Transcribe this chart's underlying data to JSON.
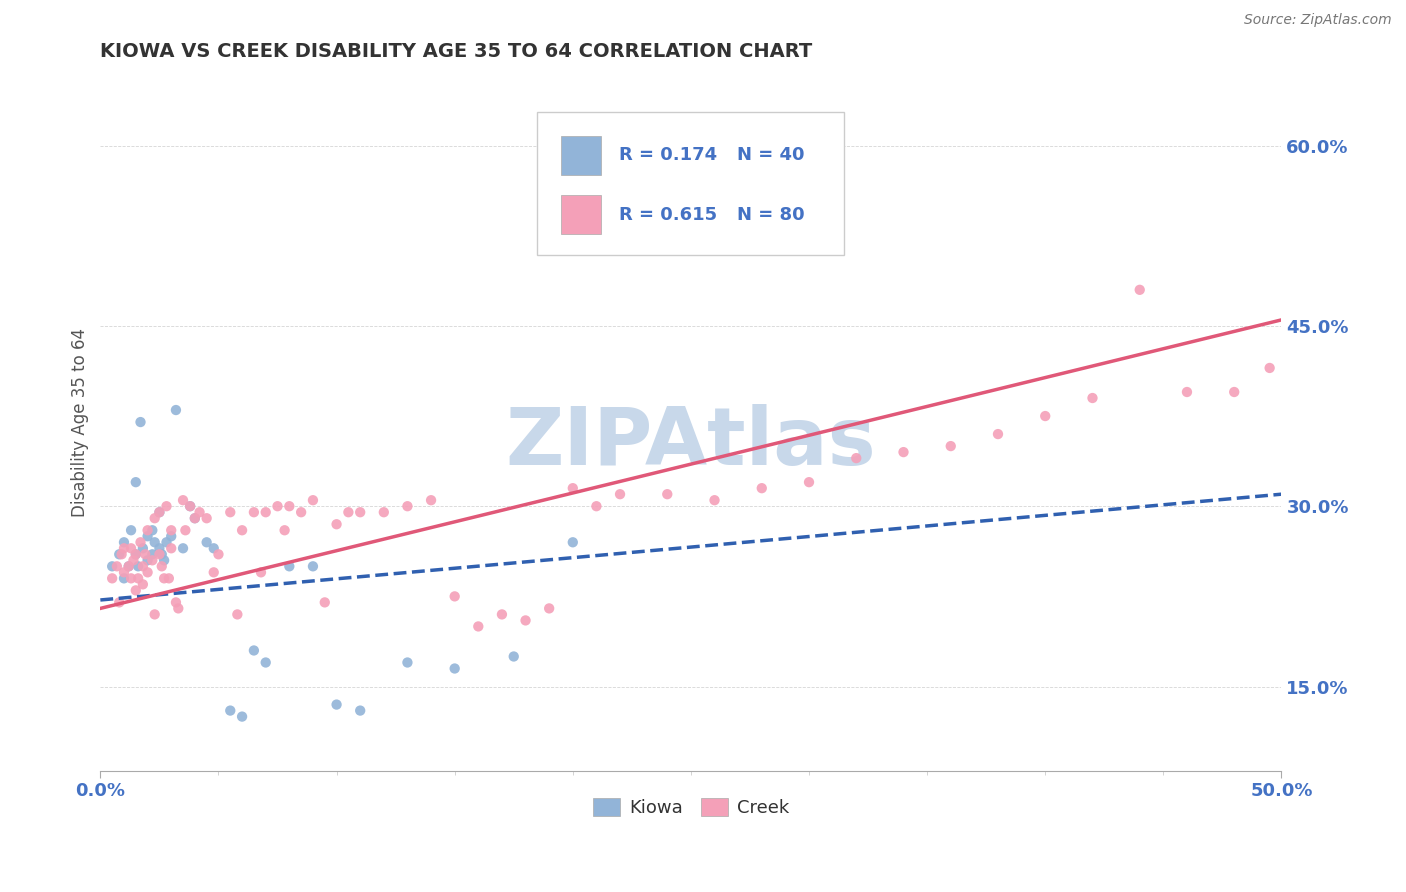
{
  "title": "KIOWA VS CREEK DISABILITY AGE 35 TO 64 CORRELATION CHART",
  "source_text": "Source: ZipAtlas.com",
  "ylabel": "Disability Age 35 to 64",
  "xlim": [
    0.0,
    0.5
  ],
  "ylim": [
    0.08,
    0.66
  ],
  "ytick_positions": [
    0.15,
    0.3,
    0.45,
    0.6
  ],
  "ytick_labels": [
    "15.0%",
    "30.0%",
    "45.0%",
    "60.0%"
  ],
  "kiowa_color": "#92b4d8",
  "creek_color": "#f4a0b8",
  "kiowa_line_color": "#3060b0",
  "creek_line_color": "#e05878",
  "legend_text_color": "#4472c4",
  "kiowa_R": 0.174,
  "kiowa_N": 40,
  "creek_R": 0.615,
  "creek_N": 80,
  "watermark": "ZIPAtlas",
  "watermark_color": "#c8d8ea",
  "kiowa_line_x0": 0.0,
  "kiowa_line_y0": 0.222,
  "kiowa_line_x1": 0.5,
  "kiowa_line_y1": 0.31,
  "creek_line_x0": 0.0,
  "creek_line_y0": 0.215,
  "creek_line_x1": 0.5,
  "creek_line_y1": 0.455,
  "kiowa_x": [
    0.005,
    0.008,
    0.01,
    0.01,
    0.012,
    0.013,
    0.015,
    0.015,
    0.016,
    0.017,
    0.018,
    0.02,
    0.02,
    0.022,
    0.022,
    0.023,
    0.025,
    0.025,
    0.026,
    0.027,
    0.028,
    0.03,
    0.032,
    0.035,
    0.038,
    0.04,
    0.045,
    0.048,
    0.055,
    0.06,
    0.065,
    0.07,
    0.08,
    0.09,
    0.1,
    0.11,
    0.13,
    0.15,
    0.175,
    0.2
  ],
  "kiowa_y": [
    0.25,
    0.26,
    0.27,
    0.24,
    0.25,
    0.28,
    0.32,
    0.26,
    0.25,
    0.37,
    0.265,
    0.275,
    0.255,
    0.26,
    0.28,
    0.27,
    0.295,
    0.265,
    0.26,
    0.255,
    0.27,
    0.275,
    0.38,
    0.265,
    0.3,
    0.29,
    0.27,
    0.265,
    0.13,
    0.125,
    0.18,
    0.17,
    0.25,
    0.25,
    0.135,
    0.13,
    0.17,
    0.165,
    0.175,
    0.27
  ],
  "creek_x": [
    0.005,
    0.007,
    0.008,
    0.009,
    0.01,
    0.01,
    0.012,
    0.013,
    0.013,
    0.014,
    0.015,
    0.015,
    0.016,
    0.017,
    0.018,
    0.018,
    0.019,
    0.02,
    0.02,
    0.022,
    0.023,
    0.023,
    0.025,
    0.025,
    0.026,
    0.027,
    0.028,
    0.029,
    0.03,
    0.03,
    0.032,
    0.033,
    0.035,
    0.036,
    0.038,
    0.04,
    0.042,
    0.045,
    0.048,
    0.05,
    0.055,
    0.058,
    0.06,
    0.065,
    0.068,
    0.07,
    0.075,
    0.078,
    0.08,
    0.085,
    0.09,
    0.095,
    0.1,
    0.105,
    0.11,
    0.12,
    0.13,
    0.14,
    0.15,
    0.16,
    0.17,
    0.18,
    0.19,
    0.2,
    0.21,
    0.22,
    0.24,
    0.26,
    0.28,
    0.3,
    0.32,
    0.34,
    0.36,
    0.38,
    0.4,
    0.42,
    0.44,
    0.46,
    0.48,
    0.495
  ],
  "creek_y": [
    0.24,
    0.25,
    0.22,
    0.26,
    0.245,
    0.265,
    0.25,
    0.24,
    0.265,
    0.255,
    0.26,
    0.23,
    0.24,
    0.27,
    0.25,
    0.235,
    0.26,
    0.245,
    0.28,
    0.255,
    0.21,
    0.29,
    0.26,
    0.295,
    0.25,
    0.24,
    0.3,
    0.24,
    0.265,
    0.28,
    0.22,
    0.215,
    0.305,
    0.28,
    0.3,
    0.29,
    0.295,
    0.29,
    0.245,
    0.26,
    0.295,
    0.21,
    0.28,
    0.295,
    0.245,
    0.295,
    0.3,
    0.28,
    0.3,
    0.295,
    0.305,
    0.22,
    0.285,
    0.295,
    0.295,
    0.295,
    0.3,
    0.305,
    0.225,
    0.2,
    0.21,
    0.205,
    0.215,
    0.315,
    0.3,
    0.31,
    0.31,
    0.305,
    0.315,
    0.32,
    0.34,
    0.345,
    0.35,
    0.36,
    0.375,
    0.39,
    0.48,
    0.395,
    0.395,
    0.415
  ]
}
